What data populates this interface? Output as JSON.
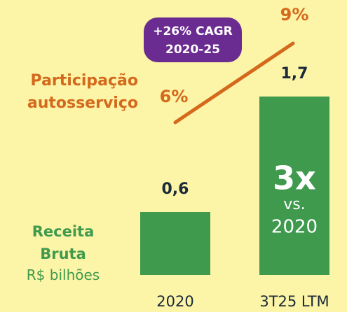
{
  "chart_data": {
    "type": "bar",
    "categories": [
      "2020",
      "3T25 LTM"
    ],
    "series": [
      {
        "name": "Receita Bruta",
        "color": "#3f9a4e",
        "values": [
          0.6,
          1.7
        ],
        "value_labels": [
          "0,6",
          "1,7"
        ]
      },
      {
        "name": "Participação autosserviço",
        "type": "line",
        "axis": "y2",
        "color": "#d4691c",
        "values": [
          6,
          9
        ],
        "value_labels": [
          "6%",
          "9%"
        ]
      }
    ],
    "unit": "R$ bilhões",
    "annotations": [
      "+26% CAGR",
      "2020-25"
    ],
    "bar_annotation": [
      "3x",
      "vs.",
      "2020"
    ]
  }
}
